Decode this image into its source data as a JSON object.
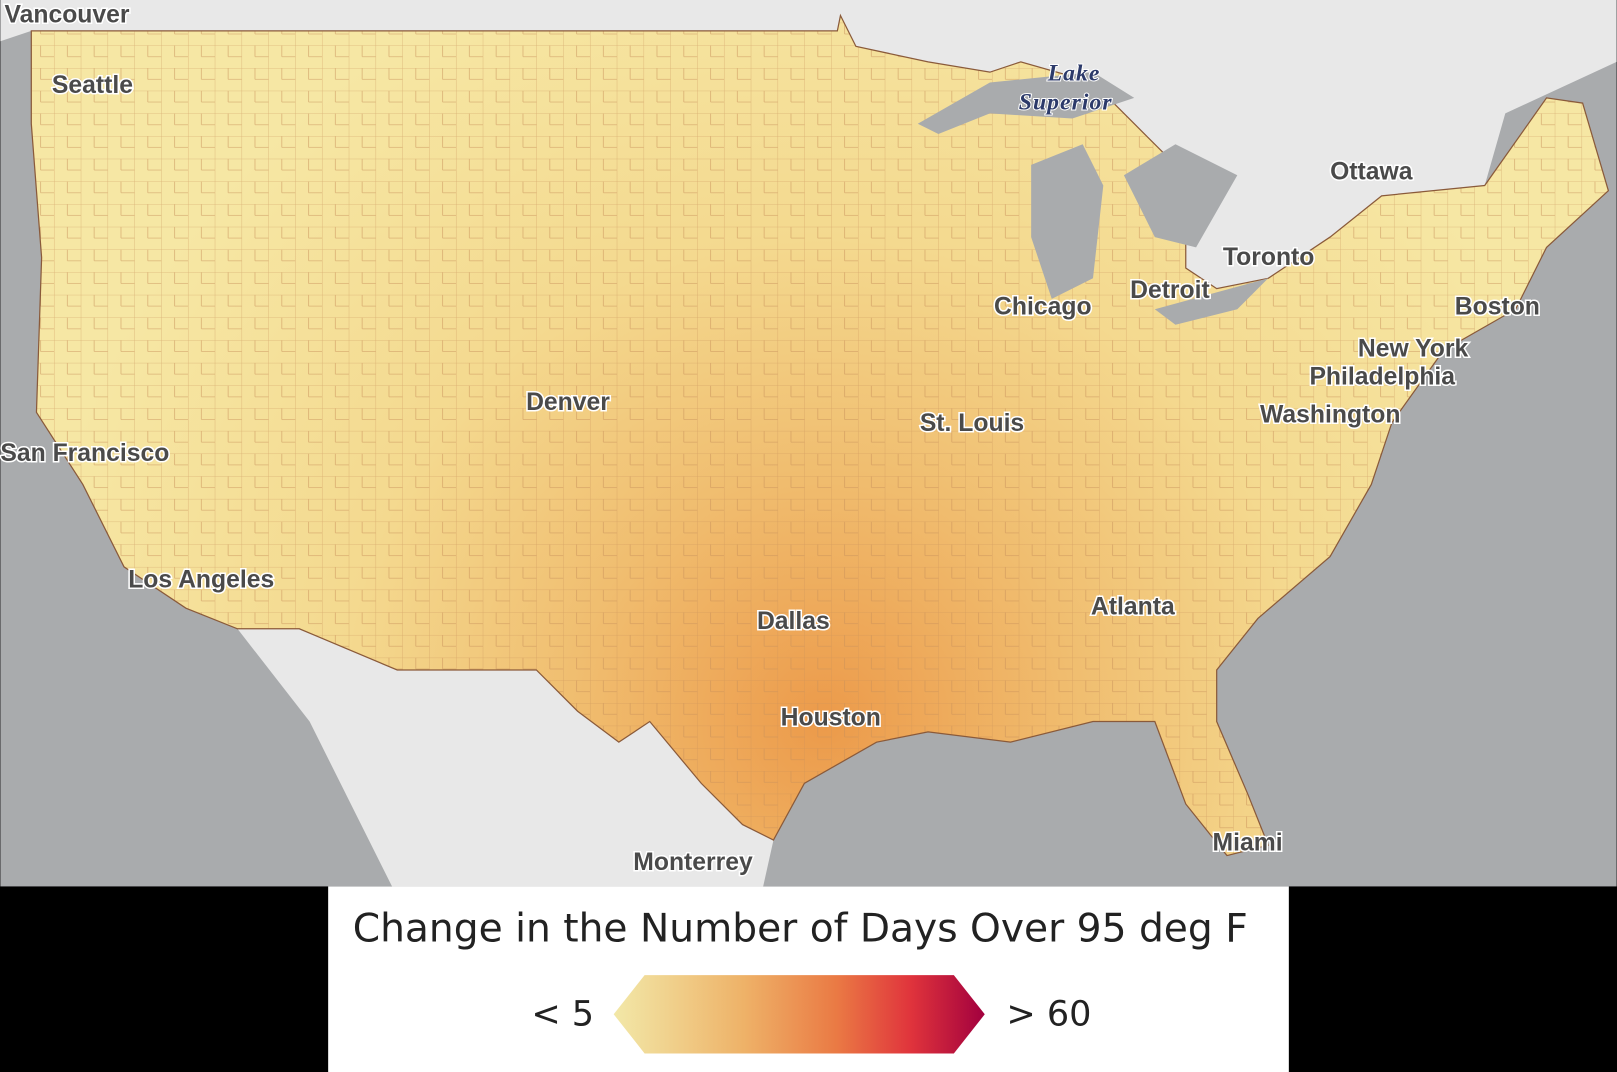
{
  "map": {
    "city_labels": [
      "Vancouver",
      "Seattle",
      "San Francisco",
      "Los Angeles",
      "Denver",
      "Dallas",
      "Houston",
      "Monterrey",
      "St. Louis",
      "Chicago",
      "Detroit",
      "Toronto",
      "Ottawa",
      "Boston",
      "New York",
      "Philadelphia",
      "Washington",
      "Atlanta",
      "Miami"
    ],
    "water_labels": [
      "Lake",
      "Superior"
    ]
  },
  "legend": {
    "title": "Change in the Number of Days Over 95 deg F",
    "min_label": "< 5",
    "max_label": "> 60"
  }
}
